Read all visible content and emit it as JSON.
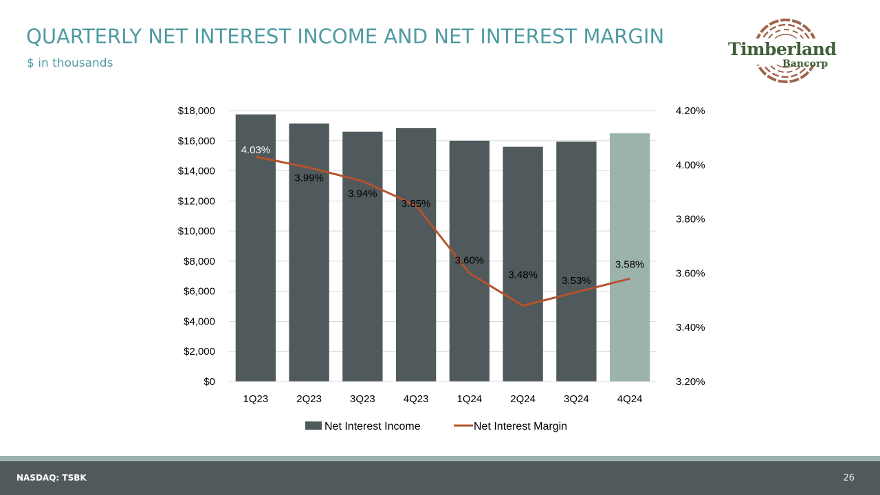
{
  "header": {
    "title": "QUARTERLY NET INTEREST INCOME AND NET INTEREST MARGIN",
    "subtitle": "$ in thousands"
  },
  "logo": {
    "name": "Timberland",
    "sub": "Bancorp"
  },
  "footer": {
    "ticker": "NASDAQ: TSBK",
    "page_number": "26"
  },
  "colors": {
    "title": "#4f9aa3",
    "bar": "#50595c",
    "bar_highlight": "#9cb3ac",
    "line": "#b4532e",
    "gridline": "#d9d9d9",
    "footer": "#505a5c"
  },
  "chart_data": {
    "type": "bar",
    "categories": [
      "1Q23",
      "2Q23",
      "3Q23",
      "4Q23",
      "1Q24",
      "2Q24",
      "3Q24",
      "4Q24"
    ],
    "series": [
      {
        "name": "Net Interest Income",
        "kind": "bar",
        "axis": "left",
        "values": [
          17750,
          17150,
          16600,
          16850,
          16000,
          15600,
          15950,
          16500
        ],
        "highlight_index": 7
      },
      {
        "name": "Net Interest Margin",
        "kind": "line",
        "axis": "right",
        "values": [
          4.03,
          3.99,
          3.94,
          3.85,
          3.6,
          3.48,
          3.53,
          3.58
        ],
        "labels": [
          "4.03%",
          "3.99%",
          "3.94%",
          "3.85%",
          "3.60%",
          "3.48%",
          "3.53%",
          "3.58%"
        ]
      }
    ],
    "left_axis": {
      "min": 0,
      "max": 18000,
      "ticks": [
        "$0",
        "$2,000",
        "$4,000",
        "$6,000",
        "$8,000",
        "$10,000",
        "$12,000",
        "$14,000",
        "$16,000",
        "$18,000"
      ]
    },
    "right_axis": {
      "min": 3.2,
      "max": 4.2,
      "ticks": [
        "3.20%",
        "3.40%",
        "3.60%",
        "3.80%",
        "4.00%",
        "4.20%"
      ]
    },
    "grid": true,
    "legend": {
      "position": "bottom",
      "entries": [
        "Net Interest Income",
        "Net Interest Margin"
      ]
    }
  }
}
